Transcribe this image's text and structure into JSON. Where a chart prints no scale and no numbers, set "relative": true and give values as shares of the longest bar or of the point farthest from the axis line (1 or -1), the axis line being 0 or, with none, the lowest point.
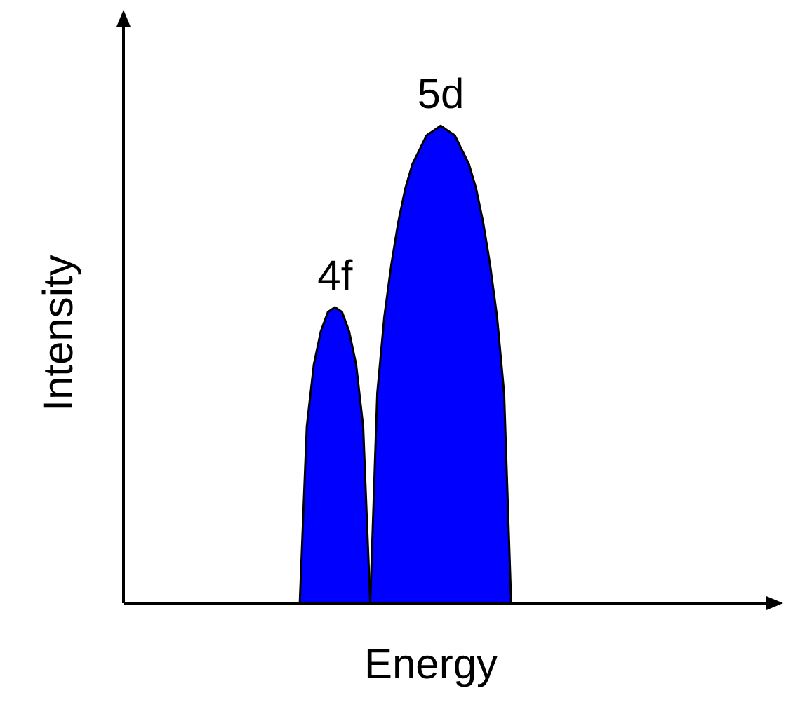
{
  "chart_data": {
    "type": "area",
    "relative": true,
    "xlabel": "Energy",
    "ylabel": "Intensity",
    "categories": [
      null,
      null,
      null,
      null,
      null,
      null,
      null,
      null,
      null,
      null,
      null,
      null,
      null,
      null,
      null,
      null,
      null,
      null,
      null,
      null,
      null,
      null,
      null,
      null,
      null,
      null,
      null,
      null,
      null,
      null,
      null,
      null,
      null,
      null,
      null,
      null,
      null,
      null,
      null,
      null,
      null,
      null,
      null,
      null,
      null,
      null,
      null,
      null,
      null,
      null,
      null,
      null,
      null,
      null,
      null,
      null,
      null,
      null,
      null,
      null,
      null,
      null,
      null,
      null,
      null,
      null,
      null,
      null,
      null,
      null,
      null,
      null,
      null,
      null,
      null,
      null,
      null,
      null,
      null,
      null,
      null,
      null,
      null,
      null,
      null,
      null,
      null,
      null,
      null,
      null,
      null,
      null,
      null
    ],
    "series": [
      {
        "name": "4f",
        "color": "#0000ff",
        "values": [
          null,
          null,
          null,
          null,
          null,
          null,
          null,
          null,
          null,
          null,
          null,
          null,
          null,
          null,
          null,
          null,
          null,
          null,
          null,
          null,
          null,
          null,
          null,
          null,
          null,
          0,
          0.37,
          0.5,
          0.57,
          0.61,
          0.62,
          0.61,
          0.57,
          0.5,
          0.37,
          0,
          null,
          null,
          null,
          null,
          null,
          null,
          null,
          null,
          null,
          null,
          null,
          null,
          null,
          null,
          null,
          null,
          null,
          null,
          null,
          null,
          null,
          null,
          null,
          null,
          null,
          null,
          null,
          null,
          null,
          null,
          null,
          null,
          null,
          null,
          null,
          null,
          null,
          null,
          null,
          null,
          null,
          null,
          null,
          null,
          null,
          null,
          null,
          null,
          null,
          null,
          null,
          null,
          null,
          null,
          null,
          null,
          null
        ]
      },
      {
        "name": "5d",
        "color": "#0000ff",
        "values": [
          null,
          null,
          null,
          null,
          null,
          null,
          null,
          null,
          null,
          null,
          null,
          null,
          null,
          null,
          null,
          null,
          null,
          null,
          null,
          null,
          null,
          null,
          null,
          null,
          null,
          null,
          null,
          null,
          null,
          null,
          null,
          null,
          null,
          null,
          null,
          0,
          0.44,
          0.6,
          0.71,
          0.8,
          0.87,
          0.92,
          0.95,
          0.98,
          0.99,
          1,
          0.99,
          0.98,
          0.95,
          0.92,
          0.87,
          0.8,
          0.71,
          0.6,
          0.44,
          0,
          null,
          null,
          null,
          null,
          null,
          null,
          null,
          null,
          null,
          null,
          null,
          null,
          null,
          null,
          null,
          null,
          null,
          null,
          null,
          null,
          null,
          null,
          null,
          null,
          null,
          null,
          null,
          null,
          null,
          null,
          null,
          null,
          null,
          null,
          null,
          null,
          null
        ]
      }
    ]
  }
}
